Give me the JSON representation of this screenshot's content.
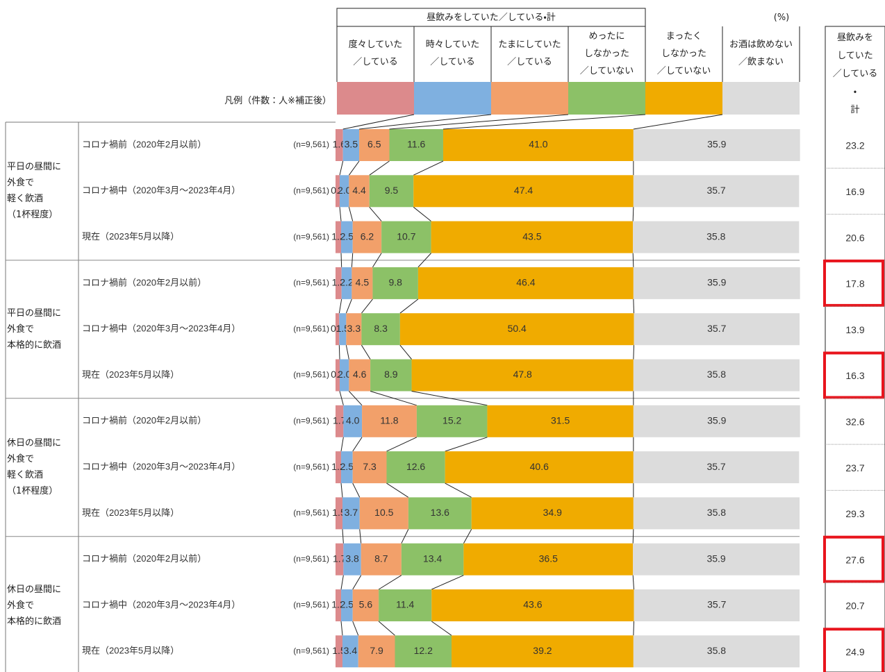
{
  "chart_data": {
    "type": "stacked-bar",
    "header_group": "昼飲みをしていた／している・計",
    "unit": "(%)",
    "legend_title": "凡例（件数：人※補正後）",
    "xlim": [
      0,
      100
    ],
    "groups": [
      "平日の昼間に\n外食で\n軽く飲酒\n（1杯程度）",
      "平日の昼間に\n外食で\n本格的に飲酒",
      "休日の昼間に\n外食で\n軽く飲酒\n（1杯程度）",
      "休日の昼間に\n外食で\n本格的に飲酒"
    ],
    "categories": [
      "コロナ禍前（2020年2月以前）",
      "コロナ禍中（2020年3月～2023年4月）",
      "現在（2023年5月以降）",
      "コロナ禍前（2020年2月以前）",
      "コロナ禍中（2020年3月～2023年4月）",
      "現在（2023年5月以降）",
      "コロナ禍前（2020年2月以前）",
      "コロナ禍中（2020年3月～2023年4月）",
      "現在（2023年5月以降）",
      "コロナ禍前（2020年2月以前）",
      "コロナ禍中（2020年3月～2023年4月）",
      "現在（2023年5月以降）"
    ],
    "n_labels": [
      "(n=9,561)",
      "(n=9,561)",
      "(n=9,561)",
      "(n=9,561)",
      "(n=9,561)",
      "(n=9,561)",
      "(n=9,561)",
      "(n=9,561)",
      "(n=9,561)",
      "(n=9,561)",
      "(n=9,561)",
      "(n=9,561)"
    ],
    "series": [
      {
        "name": "度々していた\n／している",
        "color": "#dc8a8c",
        "values": [
          1.6,
          0.9,
          1.2,
          1.3,
          0.8,
          0.9,
          1.7,
          1.2,
          1.5,
          1.7,
          1.2,
          1.5
        ],
        "value_labels": [
          "1.6",
          "0.9",
          "1.2",
          "1.3",
          "0.8",
          "0.9",
          "1.7",
          "1.2",
          "1.5",
          "1.7",
          "1.2",
          "1.5"
        ]
      },
      {
        "name": "時々していた\n／している",
        "color": "#7fb0e0",
        "values": [
          3.5,
          2.0,
          2.5,
          2.2,
          1.5,
          2.0,
          4.0,
          2.5,
          3.7,
          3.8,
          2.5,
          3.4
        ],
        "value_labels": [
          "3.5",
          "2.0",
          "2.5",
          "2.2",
          "1.5",
          "2.0",
          "4.0",
          "2.5",
          "3.7",
          "3.8",
          "2.5",
          "3.4"
        ]
      },
      {
        "name": "たまにしていた\n／している",
        "color": "#f2a06a",
        "values": [
          6.5,
          4.4,
          6.2,
          4.5,
          3.3,
          4.6,
          11.8,
          7.3,
          10.5,
          8.7,
          5.6,
          7.9
        ],
        "value_labels": [
          "6.5",
          "4.4",
          "6.2",
          "4.5",
          "3.3",
          "4.6",
          "11.8",
          "7.3",
          "10.5",
          "8.7",
          "5.6",
          "7.9"
        ]
      },
      {
        "name": "めったに\nしなかった\n／していない",
        "color": "#8cc167",
        "values": [
          11.6,
          9.5,
          10.7,
          9.8,
          8.3,
          8.9,
          15.2,
          12.6,
          13.6,
          13.4,
          11.4,
          12.2
        ],
        "value_labels": [
          "11.6",
          "9.5",
          "10.7",
          "9.8",
          "8.3",
          "8.9",
          "15.2",
          "12.6",
          "13.6",
          "13.4",
          "11.4",
          "12.2"
        ]
      },
      {
        "name": "まったく\nしなかった\n／していない",
        "color": "#f0ab00",
        "values": [
          41.0,
          47.4,
          43.5,
          46.4,
          50.4,
          47.8,
          31.5,
          40.6,
          34.9,
          36.5,
          43.6,
          39.2
        ],
        "value_labels": [
          "41.0",
          "47.4",
          "43.5",
          "46.4",
          "50.4",
          "47.8",
          "31.5",
          "40.6",
          "34.9",
          "36.5",
          "43.6",
          "39.2"
        ]
      },
      {
        "name": "お酒は飲めない\n／飲まない",
        "color": "#dcdcdc",
        "values": [
          35.9,
          35.7,
          35.8,
          35.9,
          35.7,
          35.8,
          35.9,
          35.7,
          35.8,
          35.9,
          35.7,
          35.8
        ],
        "value_labels": [
          "35.9",
          "35.7",
          "35.8",
          "35.9",
          "35.7",
          "35.8",
          "35.9",
          "35.7",
          "35.8",
          "35.9",
          "35.7",
          "35.8"
        ]
      }
    ],
    "totals": {
      "name": "昼飲みを\nしていた\n／している\n・\n計",
      "values": [
        23.2,
        16.9,
        20.6,
        17.8,
        13.9,
        16.3,
        32.6,
        23.7,
        29.3,
        27.6,
        20.7,
        24.9
      ],
      "highlight": [
        false,
        false,
        false,
        true,
        false,
        true,
        false,
        false,
        false,
        true,
        false,
        true
      ],
      "highlight_color": "#e8141c"
    }
  }
}
